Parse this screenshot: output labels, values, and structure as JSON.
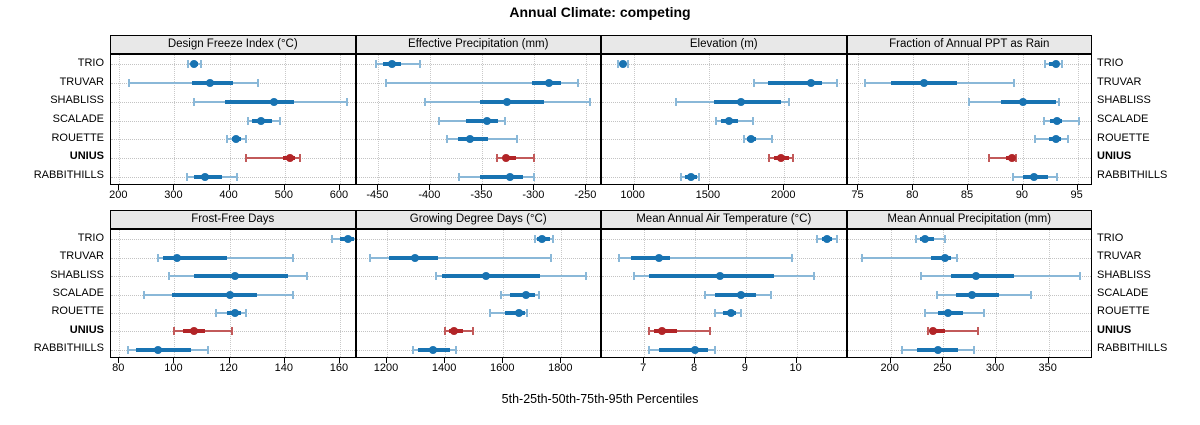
{
  "chart_data": {
    "type": "scatter",
    "subtype": "trellis-percentile-dotplot",
    "title": "Annual Climate: competing",
    "caption": "5th-25th-50th-75th-95th Percentiles",
    "legend": "none",
    "grid": "dotted",
    "categories": [
      "TRIO",
      "TRUVAR",
      "SHABLISS",
      "SCALADE",
      "ROUETTE",
      "UNIUS",
      "RABBITHILLS"
    ],
    "highlight_category": "UNIUS",
    "percentile_labels": [
      "5th",
      "25th",
      "50th",
      "75th",
      "95th"
    ],
    "colors": {
      "series": "#1873b2",
      "series_light": "#8ab8d8",
      "highlight": "#b22427",
      "highlight_light": "#c25a5a",
      "strip_bg": "#e8e8e8",
      "border": "#000000",
      "gridline": "#c9c9c9"
    },
    "panels": [
      {
        "id": "design-freeze-index",
        "title": "Design Freeze Index (°C)",
        "xlim": [
          185,
          630
        ],
        "ticks": [
          200,
          300,
          400,
          500,
          600
        ],
        "values": {
          "TRIO": [
            325,
            330,
            336,
            343,
            349
          ],
          "TRUVAR": [
            218,
            331,
            364,
            407,
            452
          ],
          "SHABLISS": [
            336,
            391,
            481,
            517,
            612
          ],
          "SCALADE": [
            433,
            441,
            457,
            476,
            492
          ],
          "ROUETTE": [
            396,
            404,
            411,
            420,
            430
          ],
          "UNIUS": [
            430,
            496,
            510,
            519,
            527
          ],
          "RABBITHILLS": [
            322,
            336,
            356,
            387,
            414
          ]
        }
      },
      {
        "id": "effective-precipitation",
        "title": "Effective Precipitation (mm)",
        "xlim": [
          -471,
          -235
        ],
        "ticks": [
          -450,
          -400,
          -350,
          -300,
          -250
        ],
        "values": {
          "TRIO": [
            -452,
            -446,
            -437,
            -428,
            -410
          ],
          "TRUVAR": [
            -443,
            -302,
            -286,
            -274,
            -258
          ],
          "SHABLISS": [
            -405,
            -352,
            -326,
            -291,
            -247
          ],
          "SCALADE": [
            -392,
            -366,
            -346,
            -335,
            -328
          ],
          "ROUETTE": [
            -384,
            -373,
            -362,
            -345,
            -317
          ],
          "UNIUS": [
            -336,
            -330,
            -327,
            -318,
            -300
          ],
          "RABBITHILLS": [
            -372,
            -352,
            -323,
            -311,
            -300
          ]
        }
      },
      {
        "id": "elevation",
        "title": "Elevation (m)",
        "xlim": [
          790,
          2420
        ],
        "ticks": [
          1000,
          1500,
          2000
        ],
        "values": {
          "TRIO": [
            895,
            912,
            927,
            942,
            962
          ],
          "TRUVAR": [
            1800,
            1890,
            2180,
            2250,
            2350
          ],
          "SHABLISS": [
            1280,
            1535,
            1715,
            1980,
            2030
          ],
          "SCALADE": [
            1545,
            1580,
            1635,
            1695,
            1795
          ],
          "ROUETTE": [
            1735,
            1755,
            1780,
            1815,
            1920
          ],
          "UNIUS": [
            1900,
            1935,
            1980,
            2035,
            2060
          ],
          "RABBITHILLS": [
            1315,
            1340,
            1380,
            1420,
            1435
          ]
        }
      },
      {
        "id": "fraction-of-annual-ppt-as-rain",
        "title": "Fraction of Annual PPT as Rain",
        "xlim": [
          74,
          96.4
        ],
        "ticks": [
          75,
          80,
          85,
          90,
          95
        ],
        "values": {
          "TRIO": [
            92.0,
            92.4,
            93.0,
            93.3,
            93.6
          ],
          "TRUVAR": [
            75.6,
            78.0,
            81.0,
            84.0,
            89.2
          ],
          "SHABLISS": [
            85.1,
            88.0,
            90.0,
            93.0,
            93.3
          ],
          "SCALADE": [
            91.9,
            92.5,
            93.1,
            93.6,
            95.1
          ],
          "ROUETTE": [
            91.1,
            92.4,
            93.0,
            93.5,
            94.1
          ],
          "UNIUS": [
            86.9,
            88.5,
            89.0,
            89.2,
            89.4
          ],
          "RABBITHILLS": [
            89.1,
            90.0,
            91.0,
            92.3,
            93.1
          ]
        }
      },
      {
        "id": "frost-free-days",
        "title": "Frost-Free Days",
        "xlim": [
          77,
          166
        ],
        "ticks": [
          80,
          100,
          120,
          140,
          160
        ],
        "values": {
          "TRIO": [
            157,
            160,
            163,
            165,
            167
          ],
          "TRUVAR": [
            94,
            96,
            101,
            119,
            143
          ],
          "SHABLISS": [
            98,
            107,
            122,
            141,
            148
          ],
          "SCALADE": [
            89,
            99,
            120,
            130,
            143
          ],
          "ROUETTE": [
            115,
            119,
            122,
            124,
            126
          ],
          "UNIUS": [
            100,
            103,
            107,
            111,
            121
          ],
          "RABBITHILLS": [
            83,
            86,
            94,
            106,
            112
          ]
        }
      },
      {
        "id": "growing-degree-days",
        "title": "Growing Degree Days (°C)",
        "xlim": [
          1095,
          1940
        ],
        "ticks": [
          1200,
          1400,
          1600,
          1800
        ],
        "values": {
          "TRIO": [
            1709,
            1716,
            1733,
            1760,
            1772
          ],
          "TRUVAR": [
            1140,
            1207,
            1296,
            1376,
            1765
          ],
          "SHABLISS": [
            1369,
            1390,
            1541,
            1726,
            1885
          ],
          "SCALADE": [
            1593,
            1624,
            1678,
            1708,
            1723
          ],
          "ROUETTE": [
            1555,
            1607,
            1654,
            1675,
            1682
          ],
          "UNIUS": [
            1400,
            1412,
            1431,
            1462,
            1496
          ],
          "RABBITHILLS": [
            1290,
            1307,
            1359,
            1416,
            1439
          ]
        }
      },
      {
        "id": "mean-annual-air-temperature",
        "title": "Mean Annual Air Temperature (°C)",
        "xlim": [
          6.17,
          11.0
        ],
        "ticks": [
          7,
          8,
          9,
          10
        ],
        "values": {
          "TRIO": [
            10.4,
            10.5,
            10.6,
            10.7,
            10.8
          ],
          "TRUVAR": [
            6.5,
            6.75,
            7.3,
            7.5,
            9.9
          ],
          "SHABLISS": [
            6.8,
            7.1,
            8.5,
            9.55,
            10.35
          ],
          "SCALADE": [
            8.2,
            8.4,
            8.9,
            9.2,
            9.5
          ],
          "ROUETTE": [
            8.4,
            8.55,
            8.7,
            8.8,
            8.9
          ],
          "UNIUS": [
            7.1,
            7.2,
            7.35,
            7.65,
            8.3
          ],
          "RABBITHILLS": [
            7.1,
            7.3,
            8.0,
            8.25,
            8.4
          ]
        }
      },
      {
        "id": "mean-annual-precipitation",
        "title": "Mean Annual Precipitation (mm)",
        "xlim": [
          159,
          392
        ],
        "ticks": [
          200,
          250,
          300,
          350
        ],
        "values": {
          "TRIO": [
            224,
            228,
            233,
            241,
            252
          ],
          "TRUVAR": [
            173,
            238,
            252,
            257,
            263
          ],
          "SHABLISS": [
            229,
            257,
            281,
            317,
            380
          ],
          "SCALADE": [
            244,
            262,
            277,
            303,
            333
          ],
          "ROUETTE": [
            233,
            245,
            254,
            269,
            289
          ],
          "UNIUS": [
            235,
            237,
            240,
            252,
            283
          ],
          "RABBITHILLS": [
            211,
            225,
            245,
            264,
            279
          ]
        }
      }
    ]
  }
}
